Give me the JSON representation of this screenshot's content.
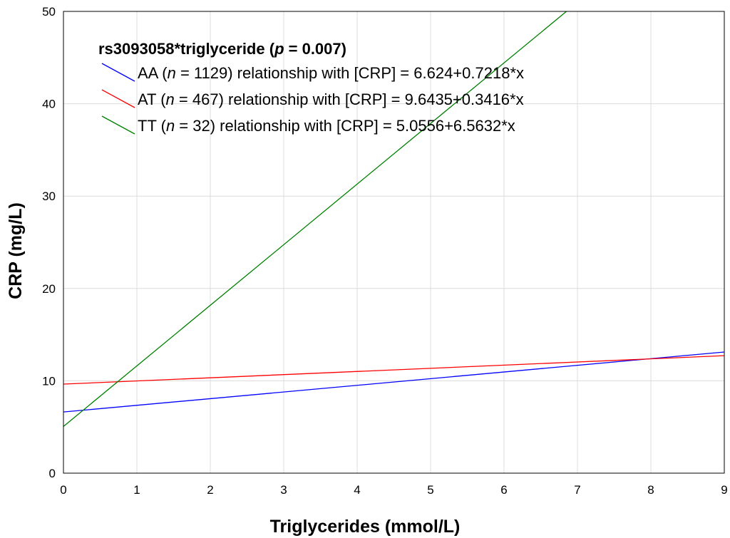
{
  "chart_data": {
    "type": "line",
    "xlabel": "Triglycerides (mmol/L)",
    "ylabel": "CRP (mg/L)",
    "xlim": [
      0,
      9
    ],
    "ylim": [
      0,
      50
    ],
    "x_ticks": [
      "0",
      "1",
      "2",
      "3",
      "4",
      "5",
      "6",
      "7",
      "8",
      "9"
    ],
    "y_ticks": [
      "0",
      "10",
      "20",
      "30",
      "40",
      "50"
    ],
    "grid": true,
    "legend": {
      "placement": "top-left",
      "title_prefix": "rs3093058*triglyceride (",
      "title_p": "p",
      "title_suffix": " = 0.007)"
    },
    "series": [
      {
        "name": "AA",
        "n_label": "n",
        "legend_rest": " = 1129) relationship with [CRP] = 6.624+0.7218*x",
        "color": "#0000ff",
        "intercept": 6.624,
        "slope": 0.7218,
        "x": [
          0,
          9
        ],
        "y": [
          6.624,
          13.12
        ]
      },
      {
        "name": "AT",
        "n_label": "n",
        "legend_rest": " = 467) relationship with [CRP] = 9.6435+0.3416*x",
        "color": "#ff0000",
        "intercept": 9.6435,
        "slope": 0.3416,
        "x": [
          0,
          9
        ],
        "y": [
          9.6435,
          12.72
        ]
      },
      {
        "name": "TT",
        "n_label": "n",
        "legend_rest": " = 32) relationship with [CRP] = 5.0556+6.5632*x",
        "color": "#008000",
        "intercept": 5.0556,
        "slope": 6.5632,
        "x": [
          0,
          6.85
        ],
        "y": [
          5.0556,
          50
        ]
      }
    ]
  }
}
